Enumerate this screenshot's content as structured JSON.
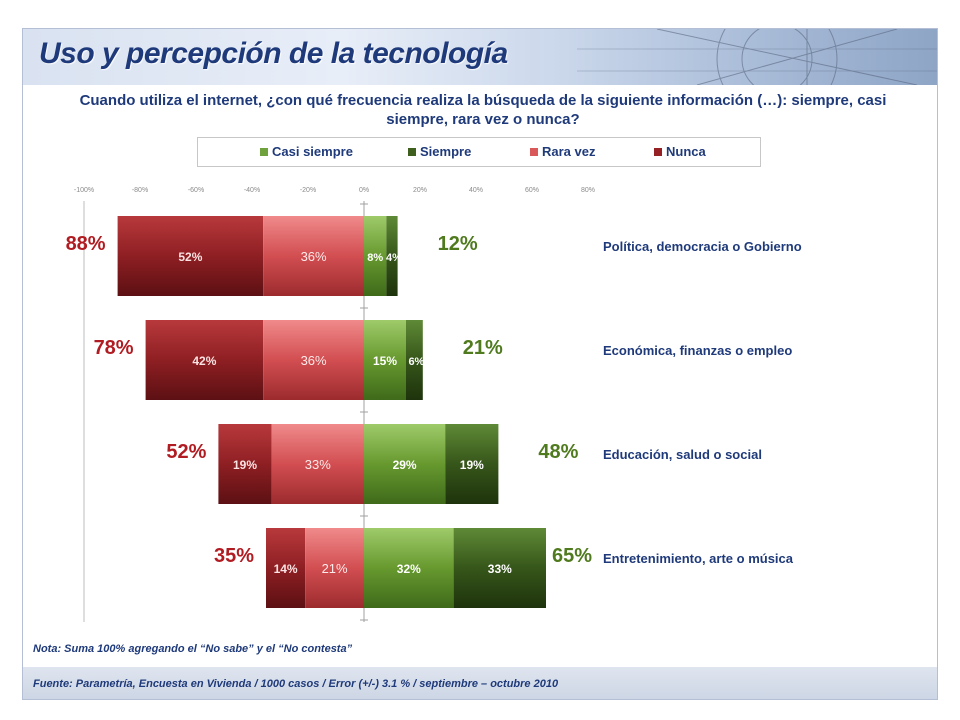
{
  "title": "Uso y percepción de la tecnología",
  "question": "Cuando utiliza el internet, ¿con qué frecuencia realiza la búsqueda de la siguiente información (…): siempre, casi siempre, rara vez o nunca?",
  "legend": {
    "items": [
      {
        "label": "Casi siempre",
        "color": "#6fa23c"
      },
      {
        "label": "Siempre",
        "color": "#3f5f1f"
      },
      {
        "label": "Rara vez",
        "color": "#d9585a"
      },
      {
        "label": "Nunca",
        "color": "#962125"
      }
    ]
  },
  "chart_data": {
    "type": "bar",
    "orientation": "horizontal-diverging-stacked",
    "xlim": [
      -100,
      80
    ],
    "x_ticks": [
      "-100%",
      "-80%",
      "-60%",
      "-40%",
      "-20%",
      "0%",
      "20%",
      "40%",
      "60%",
      "80%"
    ],
    "categories": [
      "Política, democracia o Gobierno",
      "Económica, finanzas o empleo",
      "Educación, salud o social",
      "Entretenimiento, arte o música"
    ],
    "series": [
      {
        "name": "Nunca",
        "values": [
          52,
          42,
          19,
          14
        ],
        "labels": [
          "52%",
          "42%",
          "19%",
          "14%"
        ]
      },
      {
        "name": "Rara vez",
        "values": [
          36,
          36,
          33,
          21
        ],
        "labels": [
          "36%",
          "36%",
          "33%",
          "21%"
        ]
      },
      {
        "name": "Casi siempre",
        "values": [
          8,
          15,
          29,
          32
        ],
        "labels": [
          "8%",
          "15%",
          "29%",
          "32%"
        ]
      },
      {
        "name": "Siempre",
        "values": [
          4,
          6,
          19,
          33
        ],
        "labels": [
          "4%",
          "6%",
          "19%",
          "33%"
        ]
      }
    ],
    "negative_totals": [
      "88%",
      "78%",
      "52%",
      "35%"
    ],
    "positive_totals": [
      "12%",
      "21%",
      "48%",
      "65%"
    ],
    "grid": false
  },
  "note": "Nota: Suma 100% agregando el “No sabe” y el “No contesta”",
  "source": "Fuente: Parametría, Encuesta en Vivienda / 1000 casos / Error (+/-) 3.1 % / septiembre – octubre 2010"
}
